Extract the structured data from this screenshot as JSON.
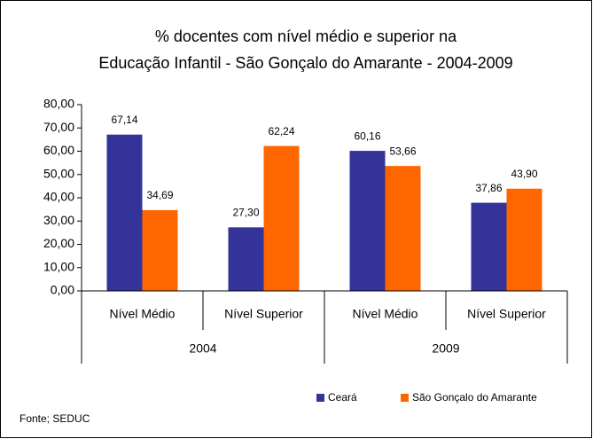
{
  "chart_data": {
    "type": "bar",
    "title": [
      "% docentes com nível médio e superior na",
      "Educação Infantil - São Gonçalo do Amarante - 2004-2009"
    ],
    "categories": [
      "Nível Médio",
      "Nível Superior",
      "Nível Médio",
      "Nível Superior"
    ],
    "groups": [
      "2004",
      "2009"
    ],
    "series": [
      {
        "name": "Ceará",
        "color": "#333399",
        "values": [
          67.14,
          27.3,
          60.16,
          37.86
        ],
        "value_labels": [
          "67,14",
          "27,30",
          "60,16",
          "37,86"
        ]
      },
      {
        "name": "São Gonçalo do Amarante",
        "color": "#ff6600",
        "values": [
          34.69,
          62.24,
          53.66,
          43.9
        ],
        "value_labels": [
          "34,69",
          "62,24",
          "53,66",
          "43,90"
        ]
      }
    ],
    "ylim": [
      0,
      80
    ],
    "yticks": [
      {
        "value": 0,
        "label": "0,00"
      },
      {
        "value": 10,
        "label": "10,00"
      },
      {
        "value": 20,
        "label": "20,00"
      },
      {
        "value": 30,
        "label": "30,00"
      },
      {
        "value": 40,
        "label": "40,00"
      },
      {
        "value": 50,
        "label": "50,00"
      },
      {
        "value": 60,
        "label": "60,00"
      },
      {
        "value": 70,
        "label": "70,00"
      },
      {
        "value": 80,
        "label": "80,00"
      }
    ],
    "legend": "bottom",
    "source": "Fonte; SEDUC"
  }
}
